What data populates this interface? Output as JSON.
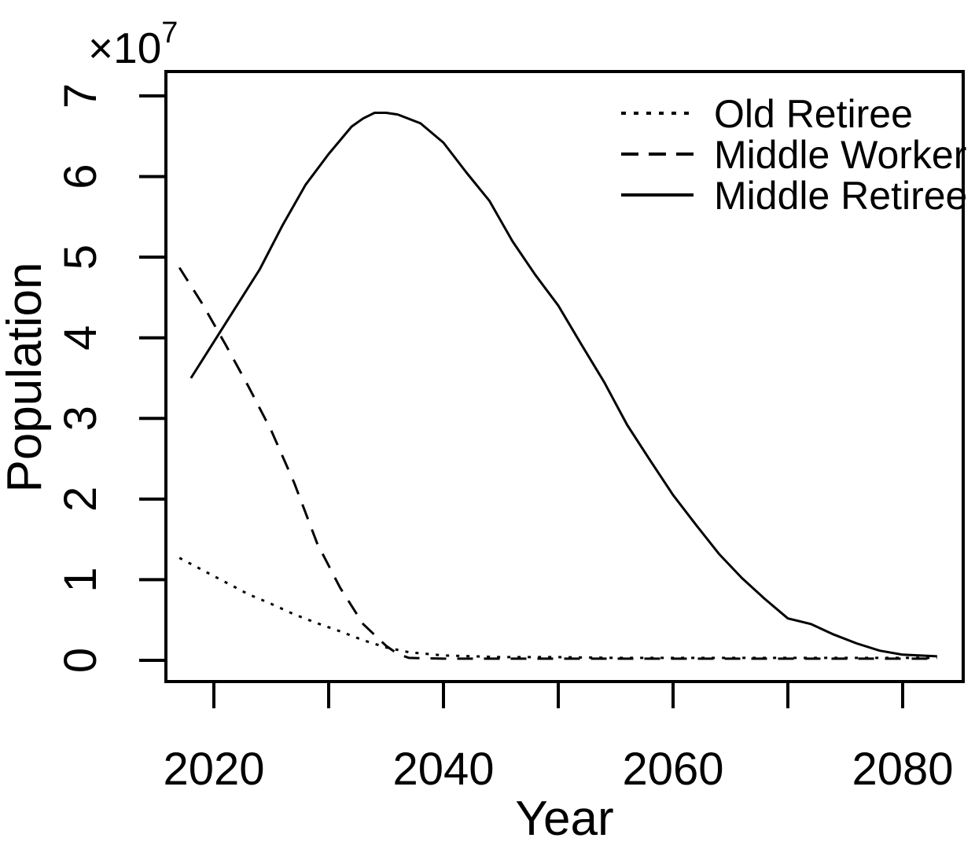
{
  "page": {
    "background": "#ffffff",
    "foreground": "#000000"
  },
  "chart_data": {
    "type": "line",
    "title": "",
    "xlabel": "Year",
    "ylabel": "Population",
    "y_axis_multiplier_base": "×10",
    "y_axis_multiplier_exponent": "7",
    "y_unit_note": "values in ×10^7",
    "xlim": [
      2016,
      2085
    ],
    "ylim": [
      -0.3,
      7.3
    ],
    "grid": false,
    "legend_position": "top-right",
    "line_color": "#000000",
    "x_ticks": [
      {
        "value": 2020,
        "label": "2020"
      },
      {
        "value": 2030,
        "label": ""
      },
      {
        "value": 2040,
        "label": "2040"
      },
      {
        "value": 2050,
        "label": ""
      },
      {
        "value": 2060,
        "label": "2060"
      },
      {
        "value": 2070,
        "label": ""
      },
      {
        "value": 2080,
        "label": "2080"
      }
    ],
    "y_ticks": [
      {
        "value": 0,
        "label": "0"
      },
      {
        "value": 1,
        "label": "1"
      },
      {
        "value": 2,
        "label": "2"
      },
      {
        "value": 3,
        "label": "3"
      },
      {
        "value": 4,
        "label": "4"
      },
      {
        "value": 5,
        "label": "5"
      },
      {
        "value": 6,
        "label": "6"
      },
      {
        "value": 7,
        "label": "7"
      }
    ],
    "series": [
      {
        "name": "Old Retiree",
        "linestyle": "dotted",
        "color": "#000000",
        "x": [
          2017,
          2019,
          2021,
          2023,
          2025,
          2027,
          2029,
          2031,
          2033,
          2035,
          2037,
          2040,
          2045,
          2050,
          2055,
          2060,
          2065,
          2070,
          2075,
          2080,
          2083
        ],
        "y_e7": [
          1.27,
          1.12,
          0.97,
          0.82,
          0.7,
          0.57,
          0.46,
          0.36,
          0.25,
          0.16,
          0.1,
          0.06,
          0.04,
          0.04,
          0.03,
          0.03,
          0.03,
          0.03,
          0.03,
          0.03,
          0.03
        ]
      },
      {
        "name": "Middle Worker",
        "linestyle": "dashed",
        "color": "#000000",
        "x": [
          2017,
          2019,
          2021,
          2023,
          2025,
          2027,
          2029,
          2031,
          2033,
          2035,
          2036,
          2037,
          2040,
          2045,
          2050,
          2055,
          2060,
          2065,
          2070,
          2075,
          2080,
          2083
        ],
        "y_e7": [
          4.87,
          4.42,
          3.92,
          3.4,
          2.85,
          2.2,
          1.45,
          0.9,
          0.45,
          0.18,
          0.08,
          0.03,
          0.02,
          0.02,
          0.02,
          0.02,
          0.02,
          0.02,
          0.02,
          0.02,
          0.02,
          0.02
        ]
      },
      {
        "name": "Middle Retiree",
        "linestyle": "solid",
        "color": "#000000",
        "x": [
          2018,
          2020,
          2022,
          2024,
          2026,
          2028,
          2030,
          2032,
          2033,
          2034,
          2035,
          2036,
          2038,
          2040,
          2042,
          2044,
          2046,
          2048,
          2050,
          2052,
          2054,
          2056,
          2058,
          2060,
          2062,
          2064,
          2066,
          2068,
          2070,
          2072,
          2074,
          2076,
          2078,
          2080,
          2083
        ],
        "y_e7": [
          3.5,
          3.95,
          4.4,
          4.85,
          5.4,
          5.9,
          6.28,
          6.62,
          6.72,
          6.79,
          6.79,
          6.77,
          6.66,
          6.42,
          6.05,
          5.7,
          5.2,
          4.78,
          4.4,
          3.92,
          3.45,
          2.92,
          2.48,
          2.05,
          1.68,
          1.32,
          1.02,
          0.76,
          0.52,
          0.45,
          0.32,
          0.21,
          0.12,
          0.07,
          0.05
        ]
      }
    ]
  }
}
